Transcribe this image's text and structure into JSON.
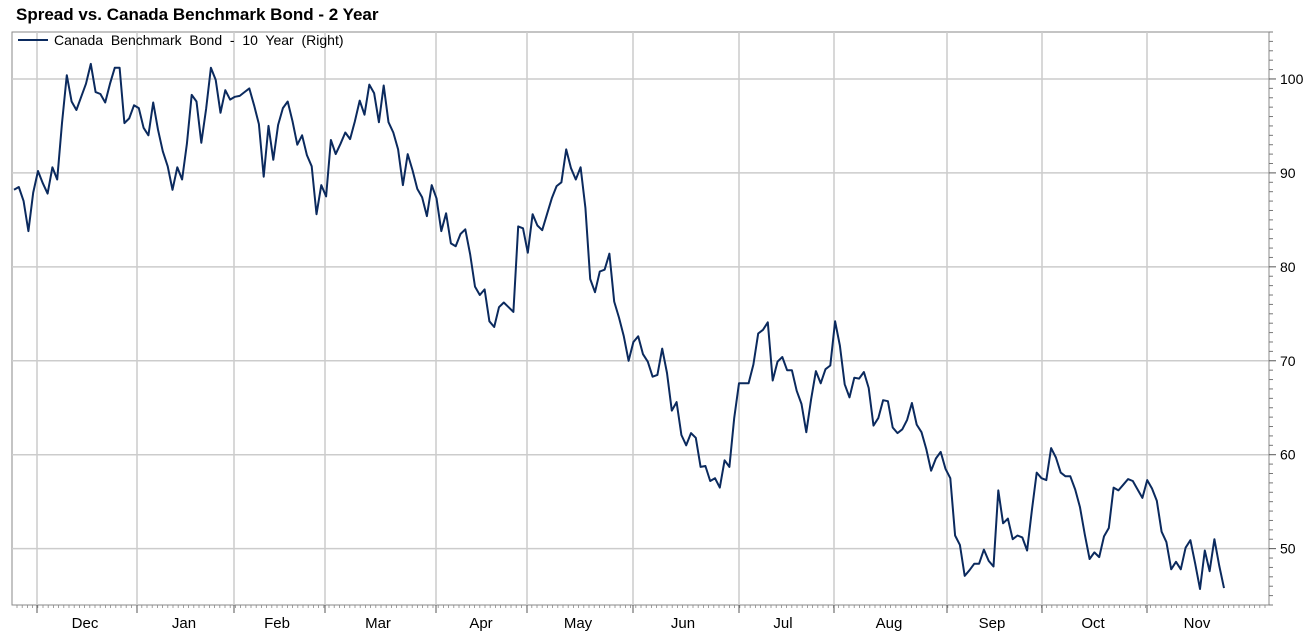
{
  "chart_data": {
    "type": "line",
    "title": "Spread vs. Canada Benchmark Bond - 2 Year",
    "xlabel": "",
    "ylabel": "",
    "legend": "top-left",
    "grid": true,
    "x_tick_labels": [
      "Dec",
      "Jan",
      "Feb",
      "Mar",
      "Apr",
      "May",
      "Jun",
      "Jul",
      "Aug",
      "Sep",
      "Oct",
      "Nov"
    ],
    "y_axis_side": "right",
    "ylim": [
      44,
      105
    ],
    "y_ticks": [
      50,
      60,
      70,
      80,
      90,
      100
    ],
    "series": [
      {
        "name": "Canada  Benchmark  Bond  -  10  Year  (Right)",
        "color": "#0b2a5e",
        "values": [
          88.2,
          88.5,
          87,
          83.8,
          87.9,
          90.2,
          88.9,
          87.8,
          90.6,
          89.3,
          95.3,
          100.4,
          97.6,
          96.7,
          98.1,
          99.5,
          101.6,
          98.6,
          98.4,
          97.5,
          99.5,
          101.2,
          101.2,
          95.3,
          95.8,
          97.2,
          96.9,
          94.8,
          94,
          97.5,
          94.6,
          92.3,
          90.7,
          88.2,
          90.6,
          89.3,
          93.1,
          98.3,
          97.6,
          93.2,
          96.8,
          101.2,
          99.9,
          96.4,
          98.8,
          97.8,
          98.1,
          98.2,
          98.6,
          99,
          97.2,
          95.2,
          89.6,
          95,
          91.4,
          95.1,
          96.9,
          97.6,
          95.5,
          93,
          94,
          91.9,
          90.7,
          85.6,
          88.7,
          87.5,
          93.5,
          92,
          93.1,
          94.3,
          93.6,
          95.5,
          97.7,
          96.2,
          99.4,
          98.5,
          95.4,
          99.3,
          95.4,
          94.3,
          92.5,
          88.7,
          92,
          90.3,
          88.3,
          87.4,
          85.4,
          88.7,
          87.3,
          83.8,
          85.7,
          82.5,
          82.2,
          83.5,
          84,
          81.3,
          77.9,
          77,
          77.6,
          74.2,
          73.6,
          75.7,
          76.2,
          75.7,
          75.2,
          84.3,
          84.1,
          81.5,
          85.6,
          84.4,
          83.9,
          85.6,
          87.3,
          88.6,
          89,
          92.5,
          90.5,
          89.3,
          90.6,
          86.3,
          78.7,
          77.3,
          79.5,
          79.7,
          81.4,
          76.3,
          74.6,
          72.6,
          70,
          72,
          72.6,
          70.7,
          69.9,
          68.3,
          68.5,
          71.3,
          68.7,
          64.7,
          65.6,
          62.1,
          61,
          62.3,
          61.8,
          58.7,
          58.8,
          57.2,
          57.5,
          56.5,
          59.4,
          58.7,
          63.9,
          67.6,
          67.6,
          67.6,
          69.6,
          72.9,
          73.3,
          74.1,
          67.9,
          69.9,
          70.4,
          69,
          69,
          66.8,
          65.4,
          62.4,
          65.9,
          68.9,
          67.6,
          69.1,
          69.5,
          74.2,
          71.6,
          67.5,
          66.1,
          68.2,
          68.1,
          68.8,
          67.1,
          63.1,
          63.9,
          65.8,
          65.7,
          62.9,
          62.3,
          62.7,
          63.7,
          65.5,
          63.2,
          62.4,
          60.6,
          58.3,
          59.6,
          60.3,
          58.5,
          57.5,
          51.4,
          50.4,
          47.1,
          47.7,
          48.4,
          48.4,
          49.9,
          48.7,
          48.1,
          56.2,
          52.7,
          53.2,
          51,
          51.4,
          51.2,
          49.8,
          54.1,
          58.1,
          57.5,
          57.3,
          60.7,
          59.7,
          58.1,
          57.7,
          57.7,
          56.3,
          54.4,
          51.5,
          48.9,
          49.6,
          49.1,
          51.3,
          52.2,
          56.5,
          56.2,
          56.8,
          57.4,
          57.2,
          56.3,
          55.4,
          57.3,
          56.4,
          55.1,
          51.8,
          50.7,
          47.8,
          48.6,
          47.8,
          50.1,
          50.9,
          48.4,
          45.7,
          49.8,
          47.6,
          51,
          48.2,
          45.8
        ]
      }
    ]
  }
}
